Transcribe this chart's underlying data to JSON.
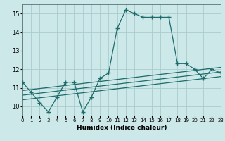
{
  "title": "",
  "xlabel": "Humidex (Indice chaleur)",
  "xlim": [
    0,
    23
  ],
  "ylim": [
    9.5,
    15.5
  ],
  "xticks": [
    0,
    1,
    2,
    3,
    4,
    5,
    6,
    7,
    8,
    9,
    10,
    11,
    12,
    13,
    14,
    15,
    16,
    17,
    18,
    19,
    20,
    21,
    22,
    23
  ],
  "yticks": [
    10,
    11,
    12,
    13,
    14,
    15
  ],
  "bg_color": "#cce8e8",
  "line_color": "#1e6b6b",
  "grid_color": "#aacccc",
  "main_x": [
    0,
    1,
    2,
    3,
    4,
    5,
    6,
    7,
    8,
    9,
    10,
    11,
    12,
    13,
    14,
    15,
    16,
    17,
    18,
    19,
    20,
    21,
    22,
    23
  ],
  "main_y": [
    11.3,
    10.75,
    10.2,
    9.7,
    10.5,
    11.3,
    11.3,
    9.7,
    10.5,
    11.5,
    11.8,
    14.2,
    15.2,
    15.0,
    14.8,
    14.8,
    14.8,
    14.8,
    12.3,
    12.3,
    12.0,
    11.5,
    12.0,
    11.8
  ],
  "trend1_x": [
    0,
    23
  ],
  "trend1_y": [
    10.85,
    12.1
  ],
  "trend2_x": [
    0,
    23
  ],
  "trend2_y": [
    10.6,
    11.85
  ],
  "trend3_x": [
    0,
    23
  ],
  "trend3_y": [
    10.35,
    11.6
  ]
}
